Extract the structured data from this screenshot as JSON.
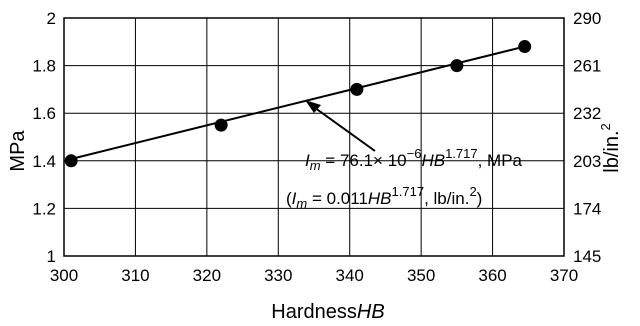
{
  "chart_data": {
    "type": "line",
    "xlabel_main": "Hardness",
    "xlabel_var": "HB",
    "ylabel": "MPa",
    "ylabel_right_main": "lb/in.",
    "ylabel_right_sup": "2",
    "xlim": [
      300,
      370
    ],
    "ylim": [
      1,
      2
    ],
    "y2lim": [
      145,
      290
    ],
    "x_ticks": [
      300,
      310,
      320,
      330,
      340,
      350,
      360,
      370
    ],
    "y_ticks": [
      1,
      1.2,
      1.4,
      1.6,
      1.8,
      2
    ],
    "y_tick_labels": [
      "1",
      "1.2",
      "1.4",
      "1.6",
      "1.8",
      "2"
    ],
    "y2_ticks": [
      145,
      174,
      203,
      232,
      261,
      290
    ],
    "grid": true,
    "series": [
      {
        "points": [
          {
            "x": 301,
            "y": 1.4
          },
          {
            "x": 322,
            "y": 1.55
          },
          {
            "x": 341,
            "y": 1.7
          },
          {
            "x": 355,
            "y": 1.8
          },
          {
            "x": 364.5,
            "y": 1.88
          }
        ],
        "fit_line": [
          {
            "x": 300.5,
            "y": 1.404
          },
          {
            "x": 364.5,
            "y": 1.88
          }
        ]
      }
    ],
    "annotations": {
      "eq1": {
        "I": "I",
        "m": "m",
        "part1": " = 76.1× 10",
        "exp1": "−6",
        "HB": "HB",
        "exp2": "1.717",
        "unit": ", MPa"
      },
      "eq2": {
        "open": "(",
        "I": "I",
        "m": "m",
        "part1": " = 0.011",
        "HB": "HB",
        "exp2": "1.717",
        "unit": ", lb/in.",
        "sup": "2",
        "close": ")"
      }
    }
  }
}
